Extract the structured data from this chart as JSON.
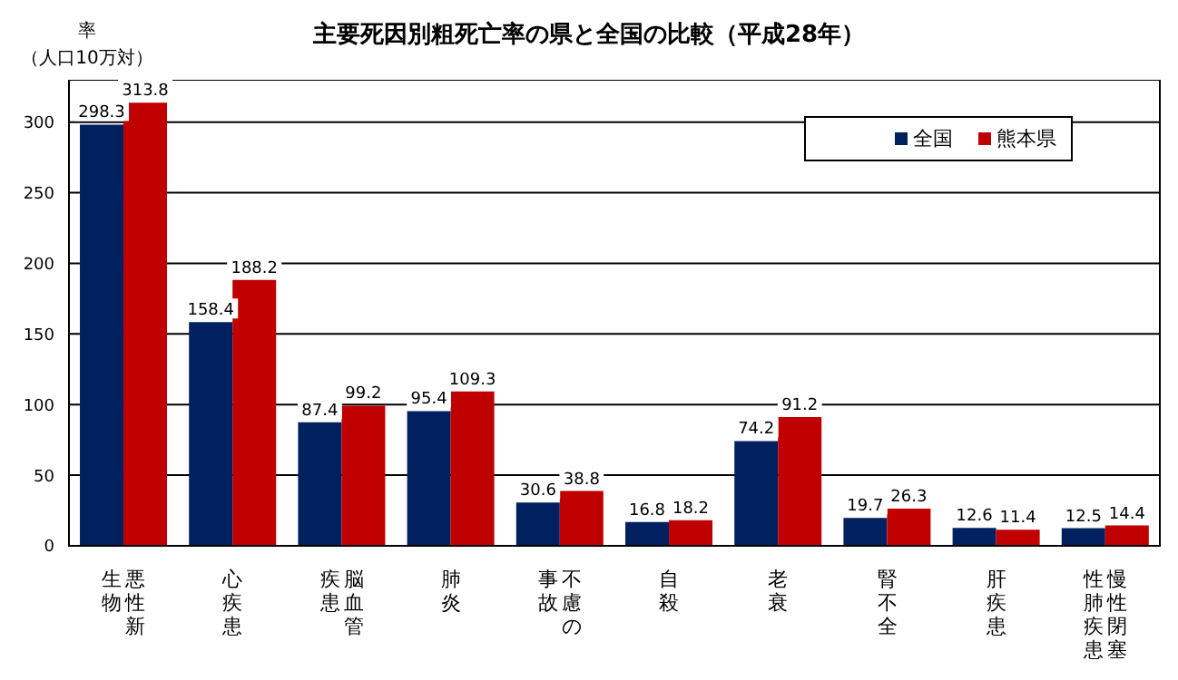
{
  "chart_data": {
    "type": "bar",
    "title": "主要死因別粗死亡率の県と全国の比較（平成28年）",
    "ylabel": "率（人口10万対）",
    "categories": [
      "悪性新生物",
      "心疾患",
      "脳血管疾患",
      "肺炎",
      "不慮の事故",
      "自殺",
      "老衰",
      "腎不全",
      "肝疾患",
      "慢性閉塞性肺疾患"
    ],
    "series": [
      {
        "name": "全国",
        "color": "#002060",
        "values": [
          298.3,
          158.4,
          87.4,
          95.4,
          30.6,
          16.8,
          74.2,
          19.7,
          12.6,
          12.5
        ]
      },
      {
        "name": "熊本県",
        "color": "#c00000",
        "values": [
          313.8,
          188.2,
          99.2,
          109.3,
          38.8,
          18.2,
          91.2,
          26.3,
          11.4,
          14.4
        ]
      }
    ],
    "ylim": [
      0,
      330
    ],
    "yticks": [
      0,
      50,
      100,
      150,
      200,
      250,
      300
    ],
    "grid": "y",
    "legend": "top right",
    "data_labels": true
  }
}
